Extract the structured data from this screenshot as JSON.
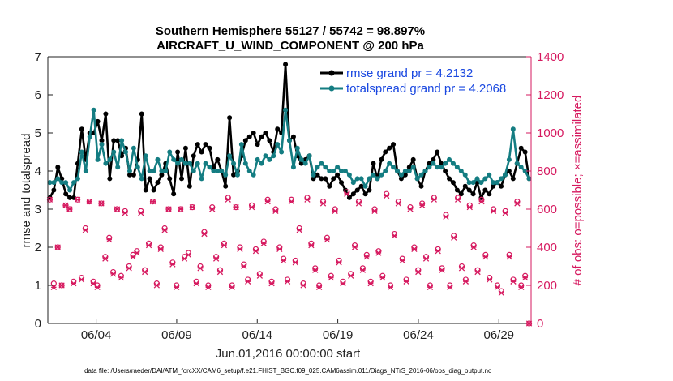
{
  "chart_data": {
    "type": "line",
    "title": "Southern Hemisphere 55127 / 55742 = 98.897%",
    "subtitle": "AIRCRAFT_U_WIND_COMPONENT @ 200 hPa",
    "xlabel": "Jun.01,2016 00:00:00 start",
    "ylabel": "rmse and totalspread",
    "ylabel_right": "# of obs: o=possible; ×=assimilated",
    "footnote": "data file: /Users/raeder/DAI/ATM_forcXX/CAM6_setup/f.e21.FHIST_BGC.f09_025.CAM6assim.011/Diags_NTrS_2016-06/obs_diag_output.nc",
    "xlim": [
      0,
      60
    ],
    "ylim": [
      0,
      7
    ],
    "ylim_right": [
      0,
      1400
    ],
    "x_ticks": [
      6,
      16,
      26,
      36,
      46,
      56
    ],
    "x_tick_labels": [
      "06/04",
      "06/09",
      "06/14",
      "06/19",
      "06/24",
      "06/29"
    ],
    "y_ticks": [
      0,
      1,
      2,
      3,
      4,
      5,
      6,
      7
    ],
    "y_ticks_right": [
      0,
      200,
      400,
      600,
      800,
      1000,
      1200,
      1400
    ],
    "legend": [
      "rmse grand pr = 4.2132",
      "totalspread grand pr = 4.2068"
    ],
    "colors": {
      "rmse": "#000000",
      "spread": "#147d82",
      "obs": "#d6195f",
      "legend_text": "#1a48e0"
    },
    "series": [
      {
        "name": "rmse",
        "values": [
          3.3,
          3.5,
          4.1,
          3.8,
          3.4,
          3.3,
          3.3,
          4.2,
          5.1,
          4.3,
          5.0,
          5.0,
          5.3,
          4.8,
          5.5,
          3.8,
          4.8,
          4.8,
          4.4,
          4.6,
          3.9,
          3.9,
          4.3,
          5.5,
          3.5,
          3.8,
          3.5,
          3.7,
          3.9,
          4.2,
          3.8,
          3.4,
          4.5,
          3.8,
          4.6,
          3.6,
          4.4,
          4.7,
          4.5,
          4.7,
          4.6,
          4.1,
          4.3,
          4.0,
          3.6,
          5.4,
          3.9,
          4.0,
          4.4,
          4.8,
          4.9,
          5.0,
          4.7,
          4.9,
          5.0,
          4.8,
          4.5,
          5.1,
          5.0,
          6.8,
          4.8,
          4.9,
          4.4,
          4.2,
          4.3,
          4.4,
          3.8,
          3.9,
          3.8,
          3.8,
          3.6,
          3.8,
          3.9,
          3.7,
          3.5,
          3.3,
          3.4,
          3.5,
          3.6,
          3.4,
          3.5,
          4.2,
          3.8,
          4.3,
          4.5,
          4.6,
          4.7,
          4.0,
          3.8,
          3.9,
          4.1,
          4.3,
          3.8,
          3.6,
          4.0,
          4.2,
          4.3,
          4.5,
          4.2,
          4.0,
          3.8,
          3.7,
          3.5,
          3.4,
          3.6,
          3.5,
          3.4,
          3.7,
          3.3,
          3.5,
          3.4,
          3.6,
          3.7,
          3.6,
          3.9,
          4.0,
          3.8,
          4.2,
          4.6,
          4.5,
          3.8
        ]
      },
      {
        "name": "totalspread",
        "values": [
          3.7,
          3.7,
          3.8,
          3.7,
          3.7,
          3.5,
          3.7,
          3.8,
          4.5,
          4.0,
          4.9,
          5.6,
          4.3,
          4.7,
          4.2,
          4.3,
          4.5,
          4.1,
          4.8,
          4.5,
          4.0,
          4.6,
          4.1,
          3.8,
          4.4,
          4.0,
          4.0,
          4.3,
          4.0,
          4.0,
          4.5,
          4.3,
          4.2,
          4.3,
          4.2,
          4.2,
          4.0,
          4.2,
          3.8,
          4.2,
          4.1,
          4.0,
          4.0,
          4.0,
          3.9,
          4.4,
          4.2,
          3.9,
          4.7,
          4.2,
          4.0,
          3.9,
          4.3,
          4.2,
          4.4,
          4.3,
          4.4,
          4.7,
          4.5,
          5.6,
          4.8,
          4.1,
          4.6,
          4.3,
          4.2,
          4.4,
          3.9,
          4.1,
          4.2,
          4.1,
          4.0,
          4.0,
          4.1,
          4.0,
          4.0,
          3.9,
          3.7,
          3.8,
          3.8,
          3.6,
          3.8,
          3.9,
          3.8,
          3.9,
          4.0,
          4.2,
          4.1,
          4.0,
          3.9,
          4.0,
          4.0,
          4.1,
          3.8,
          3.9,
          4.0,
          4.1,
          4.2,
          4.1,
          4.1,
          4.2,
          4.3,
          4.2,
          4.1,
          4.0,
          3.9,
          3.7,
          3.7,
          3.8,
          3.7,
          3.8,
          3.9,
          3.7,
          3.7,
          3.8,
          3.9,
          4.3,
          5.1,
          4.2,
          4.1,
          4.0,
          3.8
        ]
      },
      {
        "name": "obs_possible",
        "values": [
          650,
          210,
          400,
          200,
          620,
          600,
          220,
          650,
          240,
          500,
          640,
          220,
          200,
          630,
          350,
          450,
          270,
          600,
          250,
          590,
          300,
          360,
          380,
          590,
          280,
          420,
          640,
          210,
          400,
          500,
          600,
          320,
          200,
          600,
          350,
          370,
          610,
          220,
          300,
          480,
          200,
          610,
          350,
          280,
          420,
          660,
          200,
          610,
          400,
          310,
          230,
          620,
          390,
          260,
          430,
          650,
          220,
          600,
          400,
          340,
          230,
          650,
          330,
          500,
          210,
          660,
          420,
          290,
          200,
          640,
          450,
          250,
          600,
          330,
          220,
          690,
          260,
          410,
          640,
          290,
          360,
          220,
          600,
          380,
          250,
          680,
          200,
          470,
          640,
          340,
          230,
          610,
          400,
          280,
          630,
          350,
          200,
          660,
          390,
          290,
          570,
          200,
          460,
          660,
          300,
          230,
          620,
          410,
          280,
          650,
          360,
          240,
          600,
          200,
          170,
          590,
          360,
          230,
          640,
          200,
          250,
          0
        ]
      },
      {
        "name": "obs_assimilated",
        "values": [
          650,
          190,
          400,
          200,
          620,
          600,
          210,
          650,
          230,
          490,
          640,
          210,
          190,
          630,
          340,
          440,
          260,
          600,
          240,
          580,
          290,
          350,
          370,
          580,
          270,
          410,
          640,
          200,
          390,
          490,
          600,
          310,
          190,
          600,
          340,
          360,
          610,
          210,
          290,
          470,
          190,
          600,
          340,
          270,
          410,
          650,
          190,
          610,
          390,
          300,
          220,
          610,
          380,
          250,
          420,
          640,
          210,
          590,
          390,
          330,
          220,
          640,
          320,
          490,
          200,
          650,
          410,
          280,
          190,
          630,
          440,
          240,
          590,
          320,
          210,
          680,
          250,
          400,
          630,
          280,
          350,
          210,
          590,
          370,
          240,
          670,
          190,
          460,
          630,
          330,
          220,
          600,
          390,
          270,
          620,
          340,
          190,
          650,
          380,
          280,
          560,
          190,
          450,
          650,
          290,
          220,
          610,
          400,
          270,
          640,
          350,
          230,
          590,
          190,
          160,
          580,
          350,
          220,
          630,
          190,
          240,
          0
        ]
      }
    ]
  }
}
